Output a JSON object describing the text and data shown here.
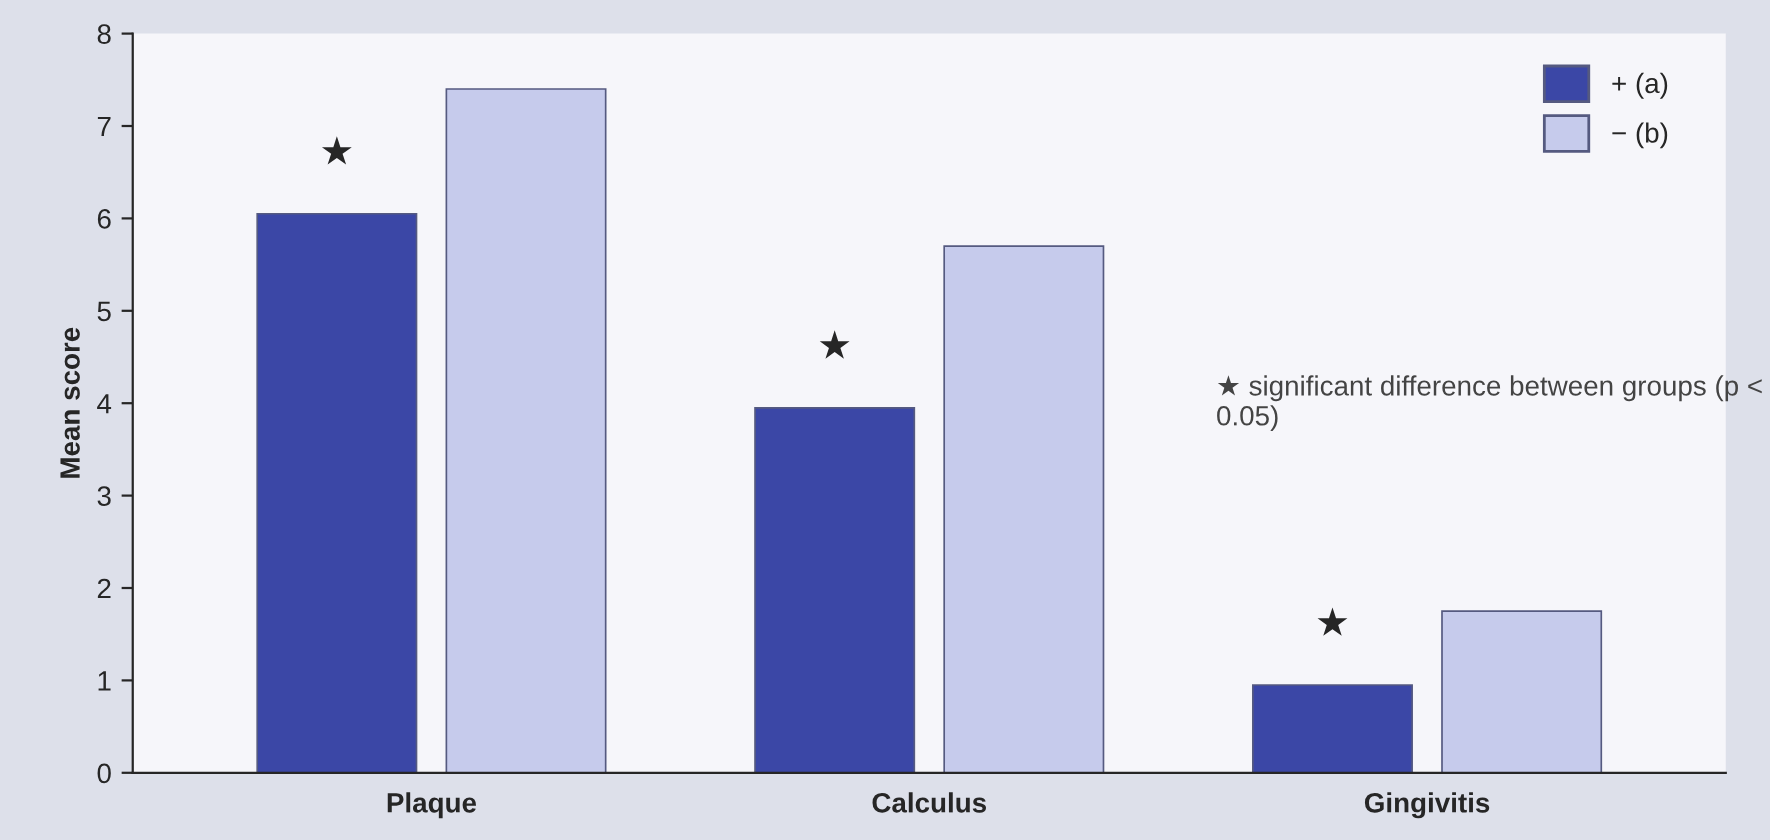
{
  "chart_data": {
    "type": "bar",
    "ylabel": "Mean score",
    "categories": [
      "Plaque",
      "Calculus",
      "Gingivitis"
    ],
    "series": [
      {
        "name": "+ (a)",
        "color": "#3b47a6",
        "values": [
          6.05,
          3.95,
          0.95
        ]
      },
      {
        "name": "− (b)",
        "color": "#c6cbec",
        "values": [
          7.4,
          5.7,
          1.75
        ]
      }
    ],
    "ylim": [
      0,
      8
    ],
    "yticks": [
      0,
      1,
      2,
      3,
      4,
      5,
      6,
      7,
      8
    ],
    "grid": false,
    "legend": "top right",
    "annotations": [
      "★",
      "★",
      "★",
      "★ significant difference between groups (p < 0.05)"
    ]
  }
}
